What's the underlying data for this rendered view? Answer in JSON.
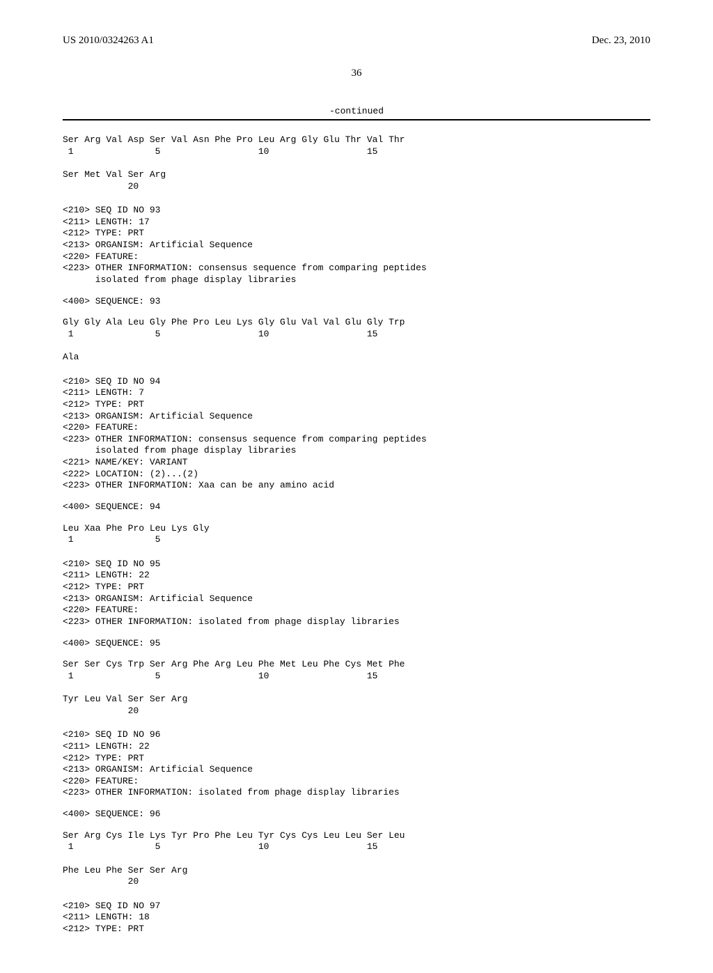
{
  "header": {
    "pub_number": "US 2010/0324263 A1",
    "pub_date": "Dec. 23, 2010"
  },
  "page_number": "36",
  "continued_label": "-continued",
  "colors": {
    "text": "#000000",
    "background": "#ffffff",
    "rule": "#000000"
  },
  "fonts": {
    "body_family": "Times New Roman",
    "mono_family": "Courier New",
    "header_size_pt": 11,
    "page_num_size_pt": 11,
    "listing_size_pt": 10
  },
  "blocks": [
    {
      "type": "sequence_residues",
      "lines": [
        "Ser Arg Val Asp Ser Val Asn Phe Pro Leu Arg Gly Glu Thr Val Thr",
        " 1               5                  10                  15",
        "",
        "Ser Met Val Ser Arg",
        "            20"
      ]
    },
    {
      "type": "seq_header",
      "lines": [
        "<210> SEQ ID NO 93",
        "<211> LENGTH: 17",
        "<212> TYPE: PRT",
        "<213> ORGANISM: Artificial Sequence",
        "<220> FEATURE:",
        "<223> OTHER INFORMATION: consensus sequence from comparing peptides",
        "      isolated from phage display libraries"
      ]
    },
    {
      "type": "single",
      "text": "<400> SEQUENCE: 93"
    },
    {
      "type": "sequence_residues",
      "lines": [
        "Gly Gly Ala Leu Gly Phe Pro Leu Lys Gly Glu Val Val Glu Gly Trp",
        " 1               5                  10                  15",
        "",
        "Ala"
      ]
    },
    {
      "type": "seq_header",
      "lines": [
        "<210> SEQ ID NO 94",
        "<211> LENGTH: 7",
        "<212> TYPE: PRT",
        "<213> ORGANISM: Artificial Sequence",
        "<220> FEATURE:",
        "<223> OTHER INFORMATION: consensus sequence from comparing peptides",
        "      isolated from phage display libraries",
        "<221> NAME/KEY: VARIANT",
        "<222> LOCATION: (2)...(2)",
        "<223> OTHER INFORMATION: Xaa can be any amino acid"
      ]
    },
    {
      "type": "single",
      "text": "<400> SEQUENCE: 94"
    },
    {
      "type": "sequence_residues",
      "lines": [
        "Leu Xaa Phe Pro Leu Lys Gly",
        " 1               5"
      ]
    },
    {
      "type": "seq_header",
      "lines": [
        "<210> SEQ ID NO 95",
        "<211> LENGTH: 22",
        "<212> TYPE: PRT",
        "<213> ORGANISM: Artificial Sequence",
        "<220> FEATURE:",
        "<223> OTHER INFORMATION: isolated from phage display libraries"
      ]
    },
    {
      "type": "single",
      "text": "<400> SEQUENCE: 95"
    },
    {
      "type": "sequence_residues",
      "lines": [
        "Ser Ser Cys Trp Ser Arg Phe Arg Leu Phe Met Leu Phe Cys Met Phe",
        " 1               5                  10                  15",
        "",
        "Tyr Leu Val Ser Ser Arg",
        "            20"
      ]
    },
    {
      "type": "seq_header",
      "lines": [
        "<210> SEQ ID NO 96",
        "<211> LENGTH: 22",
        "<212> TYPE: PRT",
        "<213> ORGANISM: Artificial Sequence",
        "<220> FEATURE:",
        "<223> OTHER INFORMATION: isolated from phage display libraries"
      ]
    },
    {
      "type": "single",
      "text": "<400> SEQUENCE: 96"
    },
    {
      "type": "sequence_residues",
      "lines": [
        "Ser Arg Cys Ile Lys Tyr Pro Phe Leu Tyr Cys Cys Leu Leu Ser Leu",
        " 1               5                  10                  15",
        "",
        "Phe Leu Phe Ser Ser Arg",
        "            20"
      ]
    },
    {
      "type": "seq_header",
      "lines": [
        "<210> SEQ ID NO 97",
        "<211> LENGTH: 18",
        "<212> TYPE: PRT"
      ]
    }
  ]
}
